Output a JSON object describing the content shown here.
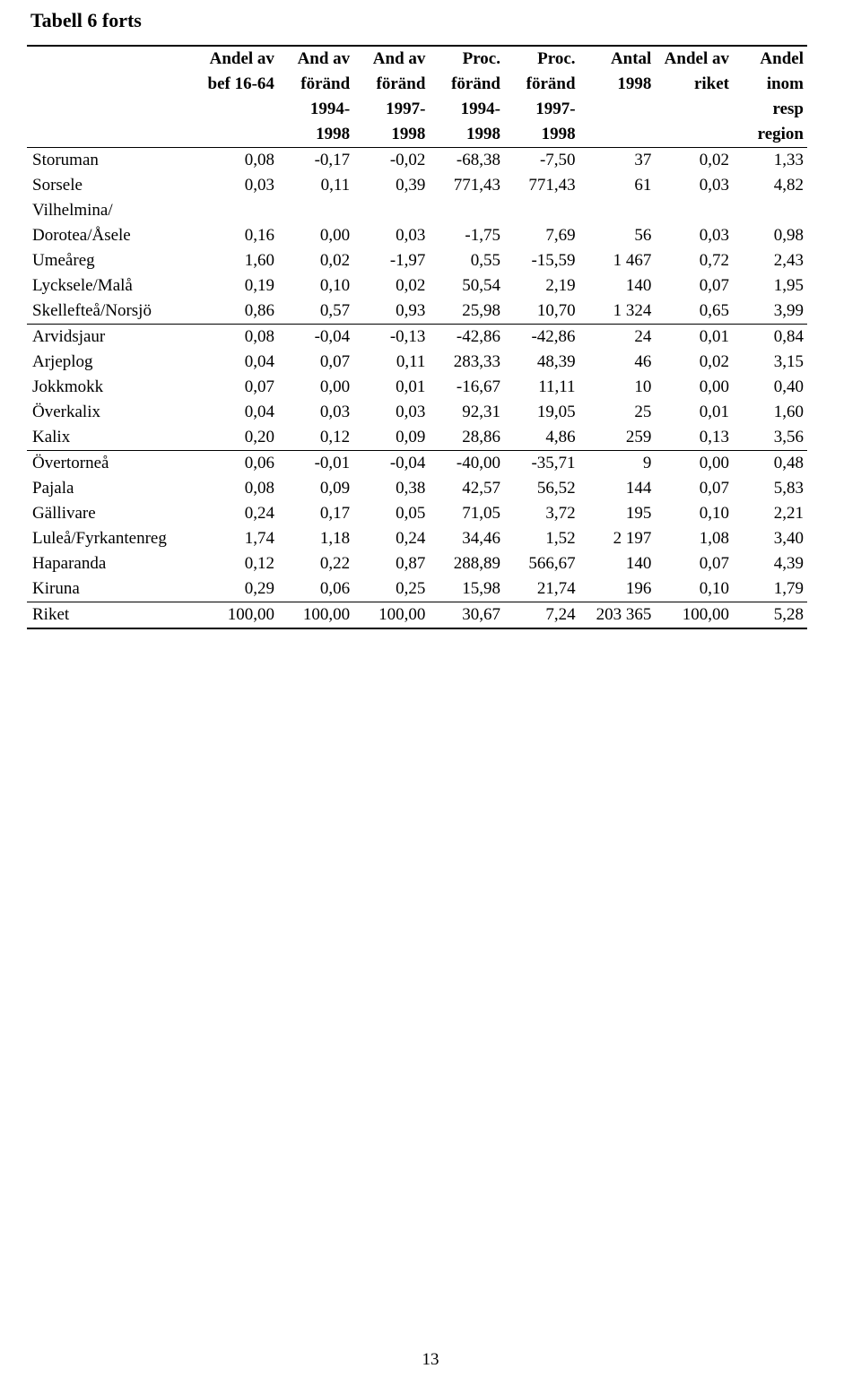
{
  "title": "Tabell 6  forts",
  "pageNumber": "13",
  "columns": [
    {
      "lines": [
        "Andel av",
        "bef 16-64"
      ]
    },
    {
      "lines": [
        "And av",
        "föränd",
        "1994-",
        "1998"
      ]
    },
    {
      "lines": [
        "And av",
        "föränd",
        "1997-",
        "1998"
      ]
    },
    {
      "lines": [
        "Proc.",
        "föränd",
        "1994-",
        "1998"
      ]
    },
    {
      "lines": [
        "Proc.",
        "föränd",
        "1997-",
        "1998"
      ]
    },
    {
      "lines": [
        "Antal",
        "1998"
      ]
    },
    {
      "lines": [
        "Andel av",
        "riket"
      ]
    },
    {
      "lines": [
        "Andel",
        "inom",
        "resp",
        "region"
      ]
    }
  ],
  "sections": [
    {
      "rows": [
        {
          "label": "Storuman",
          "v": [
            "0,08",
            "-0,17",
            "-0,02",
            "-68,38",
            "-7,50",
            "37",
            "0,02",
            "1,33"
          ]
        },
        {
          "label": "Sorsele",
          "v": [
            "0,03",
            "0,11",
            "0,39",
            "771,43",
            "771,43",
            "61",
            "0,03",
            "4,82"
          ]
        },
        {
          "label": "Vilhelmina/",
          "v": [
            "",
            "",
            "",
            "",
            "",
            "",
            "",
            ""
          ]
        },
        {
          "label": "Dorotea/Åsele",
          "v": [
            "0,16",
            "0,00",
            "0,03",
            "-1,75",
            "7,69",
            "56",
            "0,03",
            "0,98"
          ]
        },
        {
          "label": "Umeåreg",
          "v": [
            "1,60",
            "0,02",
            "-1,97",
            "0,55",
            "-15,59",
            "1 467",
            "0,72",
            "2,43"
          ]
        },
        {
          "label": "Lycksele/Malå",
          "v": [
            "0,19",
            "0,10",
            "0,02",
            "50,54",
            "2,19",
            "140",
            "0,07",
            "1,95"
          ]
        },
        {
          "label": "Skellefteå/Norsjö",
          "v": [
            "0,86",
            "0,57",
            "0,93",
            "25,98",
            "10,70",
            "1 324",
            "0,65",
            "3,99"
          ]
        }
      ]
    },
    {
      "rows": [
        {
          "label": "Arvidsjaur",
          "v": [
            "0,08",
            "-0,04",
            "-0,13",
            "-42,86",
            "-42,86",
            "24",
            "0,01",
            "0,84"
          ]
        },
        {
          "label": "Arjeplog",
          "v": [
            "0,04",
            "0,07",
            "0,11",
            "283,33",
            "48,39",
            "46",
            "0,02",
            "3,15"
          ]
        },
        {
          "label": "Jokkmokk",
          "v": [
            "0,07",
            "0,00",
            "0,01",
            "-16,67",
            "11,11",
            "10",
            "0,00",
            "0,40"
          ]
        },
        {
          "label": "Överkalix",
          "v": [
            "0,04",
            "0,03",
            "0,03",
            "92,31",
            "19,05",
            "25",
            "0,01",
            "1,60"
          ]
        },
        {
          "label": "Kalix",
          "v": [
            "0,20",
            "0,12",
            "0,09",
            "28,86",
            "4,86",
            "259",
            "0,13",
            "3,56"
          ]
        }
      ]
    },
    {
      "rows": [
        {
          "label": "Övertorneå",
          "v": [
            "0,06",
            "-0,01",
            "-0,04",
            "-40,00",
            "-35,71",
            "9",
            "0,00",
            "0,48"
          ]
        },
        {
          "label": "Pajala",
          "v": [
            "0,08",
            "0,09",
            "0,38",
            "42,57",
            "56,52",
            "144",
            "0,07",
            "5,83"
          ]
        },
        {
          "label": "Gällivare",
          "v": [
            "0,24",
            "0,17",
            "0,05",
            "71,05",
            "3,72",
            "195",
            "0,10",
            "2,21"
          ]
        },
        {
          "label": "Luleå/Fyrkantenreg",
          "v": [
            "1,74",
            "1,18",
            "0,24",
            "34,46",
            "1,52",
            "2 197",
            "1,08",
            "3,40"
          ]
        },
        {
          "label": "Haparanda",
          "v": [
            "0,12",
            "0,22",
            "0,87",
            "288,89",
            "566,67",
            "140",
            "0,07",
            "4,39"
          ]
        },
        {
          "label": "Kiruna",
          "v": [
            "0,29",
            "0,06",
            "0,25",
            "15,98",
            "21,74",
            "196",
            "0,10",
            "1,79"
          ]
        }
      ]
    },
    {
      "rows": [
        {
          "label": "Riket",
          "v": [
            "100,00",
            "100,00",
            "100,00",
            "30,67",
            "7,24",
            "203 365",
            "100,00",
            "5,28"
          ]
        }
      ]
    }
  ]
}
